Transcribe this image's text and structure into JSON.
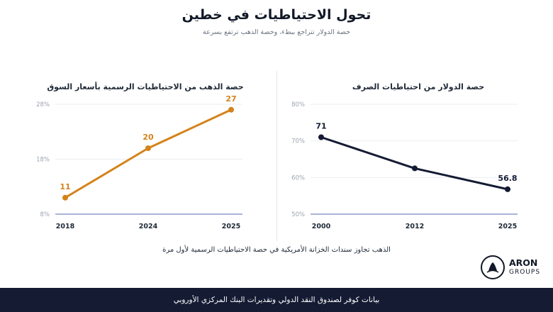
{
  "header": {
    "title": "تحول الاحتياطيات في خطين",
    "subtitle": "حصة الدولار تتراجع ببطء، وحصة الذهب ترتفع بسرعة"
  },
  "note": "الذهب تجاوز سندات الخزانة الأمريكية في حصة الاحتياطيات الرسمية لأول مرة",
  "footer": "بيانات كوفر لصندوق النقد الدولي وتقديرات البنك المركزي الأوروبي",
  "logo": {
    "name": "ARON",
    "sub": "GROUPS"
  },
  "colors": {
    "gold": "#d4831a",
    "dollar": "#141b33",
    "axis": "#a9b6d6",
    "grid": "#eceef3"
  },
  "chart_data": [
    {
      "type": "line",
      "title": "حصة الذهب من الاحتياطيات الرسمية بأسعار السوق",
      "categories": [
        "2018",
        "2024",
        "2025"
      ],
      "values": [
        11,
        20,
        27
      ],
      "data_labels": [
        "11",
        "20",
        "27"
      ],
      "yticks": [
        "8%",
        "18%",
        "28%"
      ],
      "ylim": [
        8,
        28
      ],
      "grid": true,
      "color": "#d4831a"
    },
    {
      "type": "line",
      "title": "حصة الدولار من احتياطيات الصرف",
      "categories": [
        "2000",
        "2012",
        "2025"
      ],
      "values": [
        71,
        62.5,
        56.8
      ],
      "data_labels": [
        "71",
        "",
        "56.8"
      ],
      "yticks": [
        "50%",
        "60%",
        "70%",
        "80%"
      ],
      "ylim": [
        50,
        80
      ],
      "grid": true,
      "color": "#141b33"
    }
  ]
}
